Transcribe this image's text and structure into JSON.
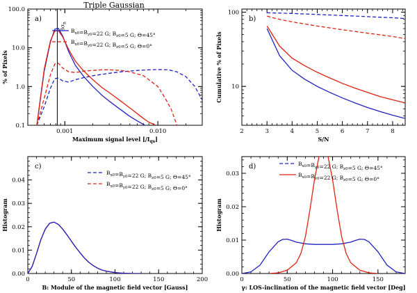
{
  "title": "Triple Gaussian",
  "colors": {
    "blue": "#2020c0",
    "red": "#e02010"
  },
  "chart_data": [
    {
      "id": "a",
      "panel_label": "a)",
      "type": "line",
      "xlabel": "Maximum signal level [/I",
      "xlabel_sub": "qs",
      "xlabel_end": "]",
      "ylabel": "% of Pixels",
      "xscale": "log",
      "yscale": "log",
      "xlim": [
        0.0004,
        0.03
      ],
      "ylim": [
        0.1,
        100
      ],
      "xticks": [
        0.001,
        0.01
      ],
      "xtick_labels": [
        "0.001",
        "0.010"
      ],
      "yticks": [
        0.1,
        1,
        10,
        100
      ],
      "ytick_labels": [
        "0.1",
        "1.0",
        "10.0",
        "100.0"
      ],
      "vline": {
        "x": 0.00083,
        "label": "3σ",
        "label_sub": "n"
      },
      "legend": [
        {
          "text": "B_x0=B_y0=22 G; B_z0=5 G; Θ=45°",
          "color": "blue"
        },
        {
          "text": "B_x0=B_y0=22 G; B_z0=5 G; Θ=0°",
          "color": "red"
        }
      ],
      "series": [
        {
          "color": "blue",
          "dash": false,
          "x": [
            0.0005,
            0.0006,
            0.0007,
            0.00078,
            0.00085,
            0.00095,
            0.0011,
            0.0013,
            0.0016,
            0.002,
            0.0025,
            0.003,
            0.004,
            0.005,
            0.006,
            0.007,
            0.008
          ],
          "y": [
            0.1,
            2.5,
            14,
            30,
            32,
            20,
            8,
            3.5,
            1.8,
            1.0,
            0.6,
            0.42,
            0.25,
            0.17,
            0.13,
            0.105,
            0.09
          ]
        },
        {
          "color": "blue",
          "dash": true,
          "x": [
            0.0005,
            0.0006,
            0.0007,
            0.00078,
            0.00085,
            0.00095,
            0.0011,
            0.0013,
            0.0016,
            0.002,
            0.003,
            0.004,
            0.006,
            0.008,
            0.01,
            0.013,
            0.016,
            0.02,
            0.025,
            0.03
          ],
          "y": [
            0.1,
            0.3,
            0.9,
            1.6,
            1.65,
            1.4,
            1.3,
            1.5,
            1.7,
            1.9,
            2.2,
            2.4,
            2.6,
            2.7,
            2.75,
            2.7,
            2.4,
            1.8,
            1.0,
            0.45
          ]
        },
        {
          "color": "red",
          "dash": false,
          "x": [
            0.0005,
            0.0006,
            0.0007,
            0.00078,
            0.00085,
            0.00095,
            0.0011,
            0.0013,
            0.0016,
            0.002,
            0.0025,
            0.003,
            0.004,
            0.005,
            0.006,
            0.007,
            0.008,
            0.0095
          ],
          "y": [
            0.1,
            2.8,
            15,
            27,
            28,
            19,
            9,
            4.5,
            2.5,
            1.5,
            0.95,
            0.7,
            0.42,
            0.28,
            0.2,
            0.15,
            0.12,
            0.1
          ]
        },
        {
          "color": "red",
          "dash": true,
          "x": [
            0.0005,
            0.0006,
            0.0007,
            0.00078,
            0.00085,
            0.00095,
            0.0011,
            0.0013,
            0.0016,
            0.002,
            0.0025,
            0.003,
            0.004,
            0.005,
            0.007,
            0.01,
            0.012,
            0.014,
            0.016
          ],
          "y": [
            0.1,
            0.5,
            2.0,
            3.8,
            4.0,
            3.0,
            2.4,
            2.3,
            2.5,
            2.6,
            2.7,
            2.7,
            2.6,
            2.4,
            1.9,
            1.0,
            0.5,
            0.25,
            0.1
          ]
        }
      ]
    },
    {
      "id": "b",
      "panel_label": "b)",
      "type": "line",
      "xlabel": "S/N",
      "ylabel": "Cumulative % of Pixels",
      "xscale": "linear",
      "yscale": "log",
      "xlim": [
        2,
        8.5
      ],
      "ylim": [
        3,
        110
      ],
      "xticks": [
        2,
        3,
        4,
        5,
        6,
        7,
        8
      ],
      "xtick_labels": [
        "2",
        "3",
        "4",
        "5",
        "6",
        "7",
        "8"
      ],
      "yticks": [
        10,
        100
      ],
      "ytick_labels": [
        "10",
        "100"
      ],
      "series": [
        {
          "color": "blue",
          "dash": true,
          "x": [
            3,
            3.5,
            4,
            5,
            6,
            7,
            8,
            8.5
          ],
          "y": [
            98,
            97,
            96,
            93,
            90,
            87,
            84,
            82
          ]
        },
        {
          "color": "red",
          "dash": true,
          "x": [
            3,
            3.5,
            4,
            5,
            6,
            7,
            8,
            8.5
          ],
          "y": [
            88,
            80,
            74,
            65,
            58,
            52,
            47,
            44
          ]
        },
        {
          "color": "red",
          "dash": false,
          "x": [
            3,
            3.5,
            4,
            4.5,
            5,
            5.5,
            6,
            6.5,
            7,
            7.5,
            8,
            8.5
          ],
          "y": [
            65,
            35,
            24,
            19,
            15.5,
            13,
            11,
            9.5,
            8.3,
            7.3,
            6.6,
            6
          ]
        },
        {
          "color": "blue",
          "dash": false,
          "x": [
            3,
            3.5,
            4,
            4.5,
            5,
            5.5,
            6,
            6.5,
            7,
            7.5,
            8,
            8.5
          ],
          "y": [
            60,
            26,
            16.5,
            12.5,
            10,
            8.3,
            7,
            6,
            5.2,
            4.6,
            4.1,
            3.7
          ]
        }
      ]
    },
    {
      "id": "c",
      "panel_label": "c)",
      "type": "line",
      "xlabel": "B: Module of the magnetic field vector [Gauss]",
      "ylabel": "Histogram",
      "xscale": "linear",
      "yscale": "linear",
      "xlim": [
        0,
        200
      ],
      "ylim": [
        0,
        0.05
      ],
      "xticks": [
        0,
        50,
        100,
        150,
        200
      ],
      "xtick_labels": [
        "0",
        "50",
        "100",
        "150",
        "200"
      ],
      "yticks": [
        0,
        0.01,
        0.02,
        0.03,
        0.04
      ],
      "ytick_labels": [
        "0.00",
        "0.01",
        "0.02",
        "0.03",
        "0.04"
      ],
      "legend": [
        {
          "text": "B_x0=B_y0=22 G; B_z0=5 G; Θ=45°",
          "color": "blue",
          "dash": true
        },
        {
          "text": "B_x0=B_y0=22 G; B_z0=5 G; Θ=0°",
          "color": "red",
          "dash": true
        }
      ],
      "series": [
        {
          "color": "red",
          "dash": false,
          "x": [
            0,
            5,
            10,
            15,
            20,
            25,
            30,
            35,
            40,
            45,
            50,
            55,
            60,
            65,
            70,
            75,
            80,
            85,
            90,
            100,
            110,
            120,
            130
          ],
          "y": [
            0,
            0.003,
            0.0085,
            0.0145,
            0.019,
            0.0215,
            0.022,
            0.021,
            0.019,
            0.0165,
            0.0138,
            0.0112,
            0.0088,
            0.0066,
            0.0048,
            0.0034,
            0.0023,
            0.0015,
            0.001,
            0.0004,
            0.0001,
            0,
            0
          ]
        },
        {
          "color": "blue",
          "dash": false,
          "x": [
            0,
            5,
            10,
            15,
            20,
            25,
            30,
            35,
            40,
            45,
            50,
            55,
            60,
            65,
            70,
            75,
            80,
            85,
            90,
            100,
            110,
            120,
            130
          ],
          "y": [
            0,
            0.003,
            0.0085,
            0.0145,
            0.019,
            0.0215,
            0.022,
            0.021,
            0.019,
            0.0165,
            0.0138,
            0.0112,
            0.0088,
            0.0066,
            0.0048,
            0.0034,
            0.0023,
            0.0015,
            0.001,
            0.0004,
            0.0001,
            0,
            0
          ]
        }
      ]
    },
    {
      "id": "d",
      "panel_label": "d)",
      "type": "line",
      "xlabel": "γ: LOS-inclination of the magnetic field vector [Deg]",
      "ylabel": "Histogram",
      "xscale": "linear",
      "yscale": "linear",
      "xlim": [
        0,
        180
      ],
      "ylim": [
        0,
        0.035
      ],
      "xticks": [
        0,
        50,
        100,
        150
      ],
      "xtick_labels": [
        "0",
        "50",
        "100",
        "150"
      ],
      "yticks": [
        0,
        0.01,
        0.02,
        0.03
      ],
      "ytick_labels": [
        "0.00",
        "0.01",
        "0.02",
        "0.03"
      ],
      "legend": [
        {
          "text": "B_x0=B_y0=22 G; B_z0=5 G; Θ=45°",
          "color": "blue",
          "dash": true
        },
        {
          "text": "B_x0=B_y0=22 G; B_z0=5 G; Θ=0°",
          "color": "red",
          "dash": false
        }
      ],
      "series": [
        {
          "color": "blue",
          "dash": false,
          "x": [
            0,
            10,
            20,
            30,
            40,
            45,
            50,
            55,
            60,
            70,
            80,
            90,
            100,
            110,
            120,
            125,
            130,
            135,
            140,
            150,
            160,
            170,
            180
          ],
          "y": [
            0,
            0.0005,
            0.0025,
            0.0065,
            0.0095,
            0.0102,
            0.0103,
            0.0099,
            0.0094,
            0.0089,
            0.0087,
            0.0087,
            0.0087,
            0.0089,
            0.0094,
            0.0099,
            0.0103,
            0.0102,
            0.0095,
            0.0065,
            0.0025,
            0.0005,
            0
          ]
        },
        {
          "color": "red",
          "dash": false,
          "x": [
            30,
            40,
            50,
            60,
            65,
            70,
            75,
            80,
            85,
            90,
            95,
            100,
            105,
            110,
            115,
            120,
            130,
            140,
            150
          ],
          "y": [
            0,
            0.0002,
            0.001,
            0.0032,
            0.006,
            0.011,
            0.019,
            0.028,
            0.035,
            0.0385,
            0.035,
            0.028,
            0.019,
            0.011,
            0.006,
            0.0032,
            0.001,
            0.0002,
            0
          ]
        }
      ]
    }
  ]
}
